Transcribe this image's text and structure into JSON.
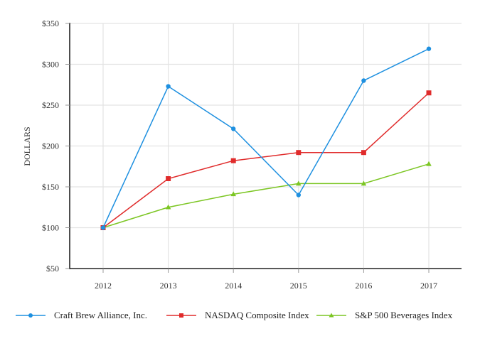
{
  "chart_data": {
    "type": "line",
    "title": "",
    "xlabel": "",
    "ylabel": "DOLLARS",
    "categories": [
      "2012",
      "2013",
      "2014",
      "2015",
      "2016",
      "2017"
    ],
    "y_ticks": [
      "$50",
      "$100",
      "$150",
      "$200",
      "$250",
      "$300",
      "$350"
    ],
    "y_tick_values": [
      50,
      100,
      150,
      200,
      250,
      300,
      350
    ],
    "ylim": [
      50,
      350
    ],
    "grid": {
      "horizontal": true,
      "vertical": true
    },
    "legend_position": "bottom",
    "series": [
      {
        "name": "Craft Brew Alliance, Inc.",
        "color": "#1E90E0",
        "marker": "circle",
        "values": [
          100,
          273,
          221,
          140,
          280,
          319
        ]
      },
      {
        "name": "NASDAQ Composite Index",
        "color": "#E02B2B",
        "marker": "square",
        "values": [
          100,
          160,
          182,
          192,
          192,
          265
        ]
      },
      {
        "name": "S&P 500 Beverages Index",
        "color": "#7CC623",
        "marker": "triangle",
        "values": [
          100,
          125,
          141,
          154,
          154,
          178
        ]
      }
    ]
  },
  "legend": {
    "items": [
      {
        "label": "Craft Brew Alliance, Inc."
      },
      {
        "label": "NASDAQ Composite Index"
      },
      {
        "label": "S&P 500 Beverages Index"
      }
    ]
  }
}
